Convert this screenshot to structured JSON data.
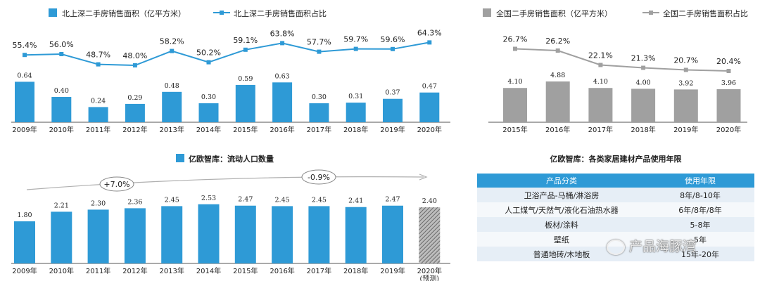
{
  "chart_data": [
    {
      "type": "bar+line",
      "legend": [
        {
          "label": "北上深二手房销售面积（亿平方米）",
          "color": "#2e9ad6"
        },
        {
          "label": "北上深二手房销售面积占比",
          "color": "#2e9ad6"
        }
      ],
      "categories": [
        "2009年",
        "2010年",
        "2011年",
        "2012年",
        "2013年",
        "2014年",
        "2015年",
        "2016年",
        "2017年",
        "2018年",
        "2019年",
        "2020年"
      ],
      "series": [
        {
          "name": "北上深二手房销售面积（亿平方米）",
          "values": [
            0.64,
            0.4,
            0.24,
            0.29,
            0.48,
            0.3,
            0.59,
            0.63,
            0.3,
            0.31,
            0.37,
            0.47
          ],
          "labels": [
            "0.64",
            "0.40",
            "0.24",
            "0.29",
            "0.48",
            "0.30",
            "0.59",
            "0.63",
            "0.30",
            "0.31",
            "0.37",
            "0.47"
          ]
        },
        {
          "name": "北上深二手房销售面积占比",
          "values": [
            55.4,
            56.0,
            48.7,
            48.0,
            58.2,
            50.2,
            59.1,
            63.8,
            57.7,
            59.7,
            59.6,
            64.3
          ],
          "labels": [
            "55.4%",
            "56.0%",
            "48.7%",
            "48.0%",
            "58.2%",
            "50.2%",
            "59.1%",
            "63.8%",
            "57.7%",
            "59.7%",
            "59.6%",
            "64.3%"
          ]
        }
      ]
    },
    {
      "type": "bar+line",
      "legend": [
        {
          "label": "全国二手房销售面积（亿平方米）",
          "color": "#a0a0a0"
        },
        {
          "label": "全国二手房销售面积占比",
          "color": "#a0a0a0"
        }
      ],
      "categories": [
        "2015年",
        "2016年",
        "2017年",
        "2018年",
        "2019年",
        "2020年"
      ],
      "series": [
        {
          "name": "全国二手房销售面积（亿平方米）",
          "values": [
            4.1,
            4.88,
            4.1,
            4.0,
            3.92,
            3.96
          ],
          "labels": [
            "4.10",
            "4.88",
            "4.10",
            "4.00",
            "3.92",
            "3.96"
          ]
        },
        {
          "name": "全国二手房销售面积占比",
          "values": [
            26.7,
            26.2,
            22.1,
            21.3,
            20.7,
            20.4
          ],
          "labels": [
            "26.7%",
            "26.2%",
            "22.1%",
            "21.3%",
            "20.7%",
            "20.4%"
          ]
        }
      ]
    },
    {
      "type": "bar",
      "title": "亿欧智库：流动人口数量",
      "categories": [
        "2009年",
        "2010年",
        "2011年",
        "2012年",
        "2013年",
        "2014年",
        "2015年",
        "2016年",
        "2017年",
        "2018年",
        "2019年",
        "2020年"
      ],
      "category_note": "(预测)",
      "values": [
        1.8,
        2.21,
        2.3,
        2.36,
        2.45,
        2.53,
        2.47,
        2.45,
        2.45,
        2.41,
        2.47,
        2.4
      ],
      "labels": [
        "1.80",
        "2.21",
        "2.30",
        "2.36",
        "2.45",
        "2.53",
        "2.47",
        "2.45",
        "2.45",
        "2.41",
        "2.47",
        "2.40"
      ],
      "forecast_last": true,
      "annotations": [
        "+7.0%",
        "-0.9%"
      ],
      "color": "#2e9ad6"
    }
  ],
  "table": {
    "title": "亿欧智库：各类家居建材产品使用年限",
    "headers": [
      "产品分类",
      "使用年限"
    ],
    "rows": [
      [
        "卫浴产品-马桶/淋浴房",
        "8年/8-10年"
      ],
      [
        "人工煤气/天然气/液化石油热水器",
        "6年/8年/8年"
      ],
      [
        "板材/涂料",
        "5-8年"
      ],
      [
        "壁纸",
        "5年"
      ],
      [
        "普通地砖/木地板",
        "15年-20年"
      ]
    ],
    "header_color": "#2e9ad6"
  },
  "watermark": "产品海豚湾"
}
